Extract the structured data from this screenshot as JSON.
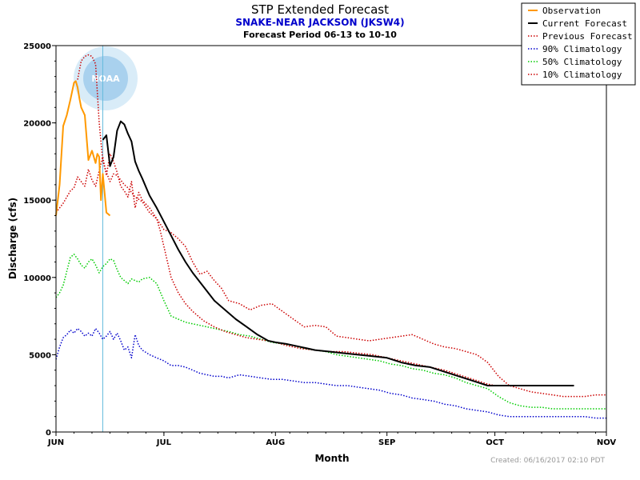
{
  "chart_data": {
    "type": "line",
    "title": "STP Extended Forecast",
    "subtitle": "SNAKE-NEAR JACKSON (JKSW4)",
    "period": "Forecast Period  06-13 to  10-10",
    "xlabel": "Month",
    "ylabel": "Discharge (cfs)",
    "credit": "Created: 06/16/2017 02:10 PDT",
    "x_unit": "day of year 2017",
    "xlim": [
      152,
      305
    ],
    "ylim": [
      0,
      25000
    ],
    "x_ticks": [
      {
        "label": "JUN",
        "x": 152
      },
      {
        "label": "JUL",
        "x": 182
      },
      {
        "label": "AUG",
        "x": 213
      },
      {
        "label": "SEP",
        "x": 244
      },
      {
        "label": "OCT",
        "x": 274
      },
      {
        "label": "NOV",
        "x": 305
      }
    ],
    "y_ticks": [
      0,
      5000,
      10000,
      15000,
      20000,
      25000
    ],
    "forecast_start_x": 165,
    "logo_text": "NOAA",
    "legend_position": "top-right",
    "series": [
      {
        "name": "Observation",
        "color": "#ff9900",
        "style": "solid",
        "width": 2,
        "x": [
          152,
          153,
          154,
          155,
          156,
          157,
          157.5,
          158,
          158.5,
          159,
          160,
          161,
          162,
          163,
          163.5,
          164,
          164.5,
          165,
          165.5,
          166,
          167
        ],
        "y": [
          14000,
          16000,
          19800,
          20500,
          21500,
          22600,
          22700,
          22300,
          21600,
          21000,
          20500,
          17600,
          18200,
          17400,
          18000,
          17800,
          15000,
          16700,
          15500,
          14200,
          14000
        ]
      },
      {
        "name": "Current Forecast",
        "color": "#000000",
        "style": "solid",
        "width": 2,
        "x": [
          165,
          166,
          167,
          168,
          169,
          170,
          171,
          172,
          173,
          174,
          175,
          176,
          178,
          180,
          182,
          184,
          186,
          188,
          190,
          193,
          196,
          199,
          202,
          205,
          208,
          211,
          213,
          216,
          220,
          224,
          228,
          232,
          236,
          240,
          244,
          248,
          252,
          256,
          260,
          264,
          268,
          272,
          274,
          276,
          280,
          284,
          288,
          292,
          296
        ],
        "y": [
          18900,
          19200,
          17200,
          17800,
          19500,
          20100,
          19900,
          19300,
          18800,
          17500,
          16900,
          16400,
          15300,
          14500,
          13600,
          12700,
          11800,
          11000,
          10300,
          9400,
          8500,
          7900,
          7300,
          6800,
          6300,
          5900,
          5800,
          5700,
          5500,
          5300,
          5200,
          5100,
          5000,
          4900,
          4800,
          4500,
          4300,
          4200,
          3900,
          3600,
          3300,
          3000,
          3000,
          3000,
          3000,
          3000,
          3000,
          3000,
          3000
        ]
      },
      {
        "name": "Previous Forecast",
        "color": "#cc0000",
        "style": "dotted",
        "width": 1.5,
        "x": [
          158,
          159,
          160,
          161,
          162,
          163,
          164,
          165,
          166,
          167,
          168,
          169,
          170,
          171,
          172,
          173,
          174,
          176,
          178,
          180,
          181,
          182,
          183,
          184,
          186,
          188,
          190,
          193,
          196,
          199,
          202,
          205,
          208,
          211,
          213,
          216,
          220,
          224,
          228,
          232,
          236,
          240,
          244,
          248,
          252,
          256,
          260,
          264,
          268,
          272,
          274
        ],
        "y": [
          22800,
          24000,
          24300,
          24400,
          24300,
          23800,
          20000,
          17500,
          16800,
          16200,
          16700,
          16600,
          16300,
          16000,
          15800,
          15500,
          15200,
          14900,
          14200,
          13800,
          13000,
          12000,
          11000,
          10000,
          9000,
          8300,
          7800,
          7200,
          6800,
          6500,
          6300,
          6100,
          6000,
          5900,
          5800,
          5600,
          5400,
          5300,
          5200,
          5200,
          5100,
          5000,
          4800,
          4600,
          4400,
          4200,
          4000,
          3700,
          3400,
          3100,
          3000
        ]
      },
      {
        "name": "90% Climatology",
        "color": "#0000cc",
        "style": "dotted",
        "width": 1.5,
        "x": [
          152,
          153,
          154,
          155,
          156,
          157,
          158,
          159,
          160,
          161,
          162,
          163,
          164,
          165,
          166,
          167,
          168,
          169,
          170,
          171,
          172,
          173,
          174,
          175,
          176,
          178,
          180,
          182,
          184,
          186,
          188,
          190,
          192,
          194,
          196,
          198,
          200,
          203,
          206,
          209,
          212,
          215,
          218,
          221,
          224,
          227,
          230,
          233,
          236,
          239,
          242,
          245,
          248,
          251,
          254,
          257,
          260,
          263,
          266,
          269,
          272,
          275,
          278,
          281,
          284,
          287,
          290,
          293,
          296,
          299,
          302,
          305
        ],
        "y": [
          4700,
          5500,
          6100,
          6300,
          6600,
          6400,
          6700,
          6500,
          6200,
          6400,
          6200,
          6700,
          6400,
          6000,
          6200,
          6500,
          6000,
          6400,
          5900,
          5300,
          5500,
          4800,
          6300,
          5600,
          5300,
          5000,
          4800,
          4600,
          4300,
          4300,
          4200,
          4000,
          3800,
          3700,
          3600,
          3600,
          3500,
          3700,
          3600,
          3500,
          3400,
          3400,
          3300,
          3200,
          3200,
          3100,
          3000,
          3000,
          2900,
          2800,
          2700,
          2500,
          2400,
          2200,
          2100,
          2000,
          1800,
          1700,
          1500,
          1400,
          1300,
          1100,
          1000,
          1000,
          1000,
          1000,
          1000,
          1000,
          1000,
          1000,
          900,
          900
        ]
      },
      {
        "name": "50% Climatology",
        "color": "#00cc00",
        "style": "dotted",
        "width": 1.5,
        "x": [
          152,
          153,
          154,
          155,
          156,
          157,
          158,
          159,
          160,
          161,
          162,
          163,
          164,
          165,
          166,
          167,
          168,
          169,
          170,
          171,
          172,
          173,
          174,
          175,
          176,
          178,
          180,
          182,
          184,
          186,
          188,
          190,
          192,
          194,
          196,
          198,
          200,
          203,
          206,
          209,
          212,
          215,
          218,
          221,
          224,
          227,
          230,
          233,
          236,
          239,
          242,
          245,
          248,
          251,
          254,
          257,
          260,
          263,
          266,
          269,
          272,
          275,
          278,
          281,
          284,
          287,
          290,
          293,
          296,
          299,
          302,
          305
        ],
        "y": [
          8700,
          9000,
          9500,
          10400,
          11300,
          11500,
          11200,
          10800,
          10600,
          11000,
          11200,
          10800,
          10300,
          10700,
          10900,
          11200,
          11100,
          10500,
          10000,
          9800,
          9600,
          9900,
          9800,
          9700,
          9900,
          10000,
          9600,
          8500,
          7500,
          7300,
          7100,
          7000,
          6900,
          6800,
          6700,
          6600,
          6500,
          6300,
          6200,
          6000,
          5800,
          5700,
          5600,
          5400,
          5300,
          5200,
          5000,
          4900,
          4800,
          4700,
          4600,
          4400,
          4300,
          4100,
          4000,
          3800,
          3700,
          3500,
          3200,
          3000,
          2800,
          2300,
          1900,
          1700,
          1600,
          1600,
          1500,
          1500,
          1500,
          1500,
          1500,
          1500
        ]
      },
      {
        "name": "10% Climatology",
        "color": "#cc0000",
        "style": "dotted",
        "width": 1.5,
        "x": [
          152,
          153,
          154,
          155,
          156,
          157,
          158,
          159,
          160,
          161,
          162,
          163,
          164,
          165,
          166,
          167,
          168,
          169,
          170,
          171,
          172,
          173,
          174,
          175,
          176,
          178,
          180,
          182,
          184,
          186,
          188,
          190,
          192,
          194,
          196,
          198,
          200,
          203,
          206,
          209,
          212,
          215,
          218,
          221,
          224,
          227,
          230,
          233,
          236,
          239,
          242,
          245,
          248,
          251,
          254,
          257,
          260,
          263,
          266,
          269,
          272,
          275,
          278,
          281,
          284,
          287,
          290,
          293,
          296,
          299,
          302,
          305
        ],
        "y": [
          14200,
          14500,
          14800,
          15200,
          15600,
          15800,
          16500,
          16200,
          15900,
          17000,
          16300,
          15900,
          16900,
          17800,
          16600,
          18000,
          17500,
          16800,
          15900,
          15600,
          15200,
          16200,
          14500,
          15500,
          15000,
          14500,
          13800,
          13100,
          12900,
          12500,
          12000,
          11000,
          10200,
          10400,
          9800,
          9300,
          8500,
          8300,
          7900,
          8200,
          8300,
          7800,
          7300,
          6800,
          6900,
          6800,
          6200,
          6100,
          6000,
          5900,
          6000,
          6100,
          6200,
          6300,
          6000,
          5700,
          5500,
          5400,
          5200,
          5000,
          4500,
          3600,
          3000,
          2800,
          2600,
          2500,
          2400,
          2300,
          2300,
          2300,
          2400,
          2400
        ]
      }
    ]
  }
}
